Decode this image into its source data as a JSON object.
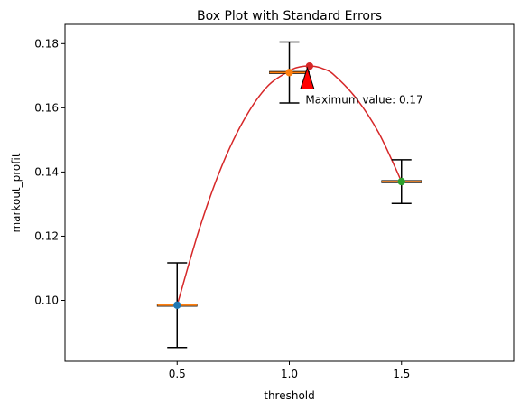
{
  "chart_data": {
    "type": "scatter",
    "title": "Box Plot with Standard Errors",
    "xlabel": "threshold",
    "ylabel": "markout_profit",
    "xlim": [
      0.0,
      2.0
    ],
    "ylim": [
      0.081,
      0.186
    ],
    "x_ticks": [
      0.5,
      1.0,
      1.5
    ],
    "x_tick_labels": [
      "0.5",
      "1.0",
      "1.5"
    ],
    "y_ticks": [
      0.1,
      0.12,
      0.14,
      0.16,
      0.18
    ],
    "y_tick_labels": [
      "0.10",
      "0.12",
      "0.14",
      "0.16",
      "0.18"
    ],
    "grid": false,
    "points": [
      {
        "x": 0.5,
        "y": 0.0985,
        "yerr": 0.0132,
        "color": "#1f77b4"
      },
      {
        "x": 1.0,
        "y": 0.171,
        "yerr": 0.0095,
        "color": "#ff7f0e"
      },
      {
        "x": 1.5,
        "y": 0.137,
        "yerr": 0.0068,
        "color": "#2ca02c"
      }
    ],
    "box_color": "#ff7f0e",
    "fit_curve": {
      "color": "#d62728",
      "x": [
        0.5,
        0.6,
        0.7,
        0.8,
        0.9,
        1.0,
        1.05,
        1.1,
        1.15,
        1.2,
        1.3,
        1.4,
        1.5
      ],
      "y": [
        0.0985,
        0.1225,
        0.142,
        0.1565,
        0.1665,
        0.1715,
        0.1728,
        0.173,
        0.1722,
        0.1702,
        0.1628,
        0.152,
        0.137
      ]
    },
    "max_point": {
      "x": 1.09,
      "y": 0.173,
      "color": "#d62728"
    },
    "annotation": {
      "text": "Maximum value: 0.17",
      "x": 1.08,
      "y": 0.1625,
      "arrow_to_x": 1.08,
      "arrow_to_y": 0.173,
      "arrow_color": "#ff0000"
    }
  }
}
